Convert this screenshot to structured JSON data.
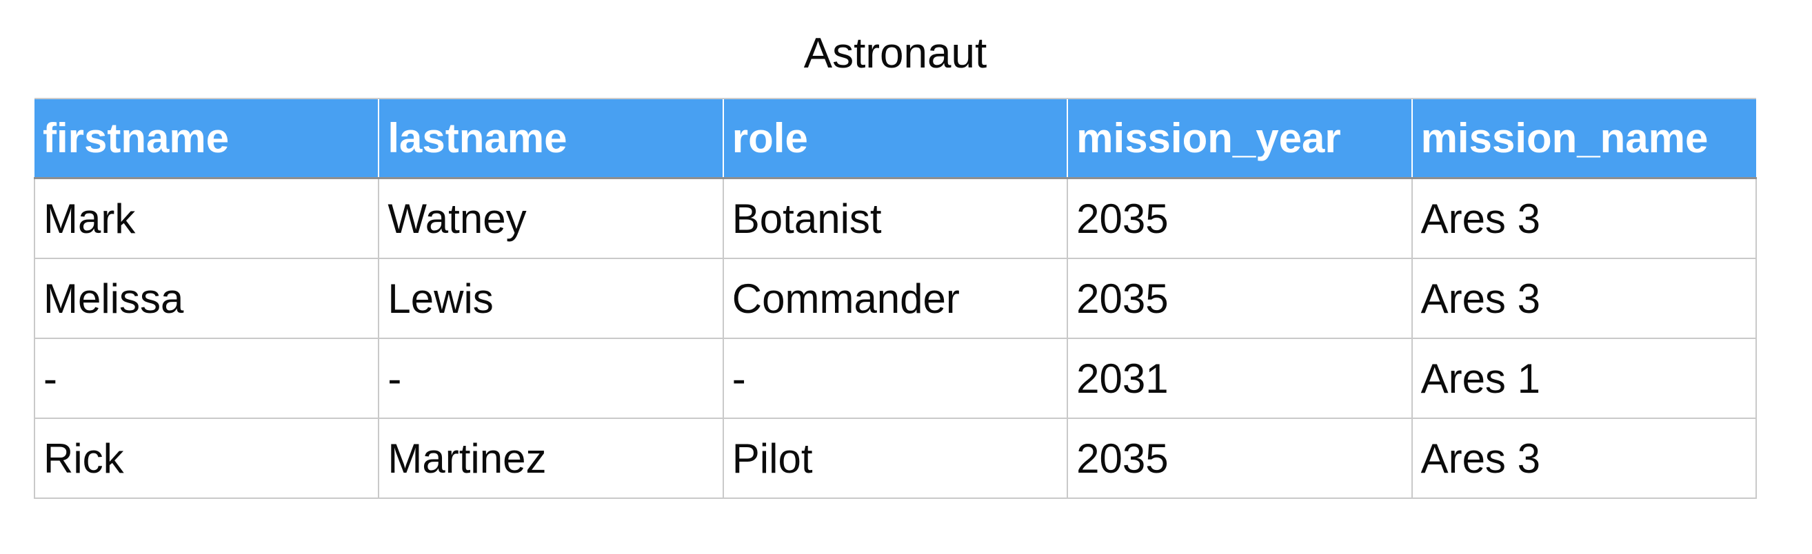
{
  "colors": {
    "header-bg": "#48a0f2",
    "header-text": "#ffffff",
    "cell-text": "#0b0b0b",
    "grid-line": "#c9c9c9",
    "header-underline": "#8f8f8f",
    "header-topline": "#cccccc"
  },
  "chart_data": {
    "type": "table",
    "title": "Astronaut",
    "columns": [
      "firstname",
      "lastname",
      "role",
      "mission_year",
      "mission_name"
    ],
    "rows": [
      [
        "Mark",
        "Watney",
        "Botanist",
        "2035",
        "Ares 3"
      ],
      [
        "Melissa",
        "Lewis",
        "Commander",
        "2035",
        "Ares 3"
      ],
      [
        "-",
        "-",
        "-",
        "2031",
        "Ares 1"
      ],
      [
        "Rick",
        "Martinez",
        "Pilot",
        "2035",
        "Ares 3"
      ]
    ],
    "layout": {
      "title_position": "top-center",
      "header_style": "blue-bold-white",
      "grid": "full"
    }
  }
}
